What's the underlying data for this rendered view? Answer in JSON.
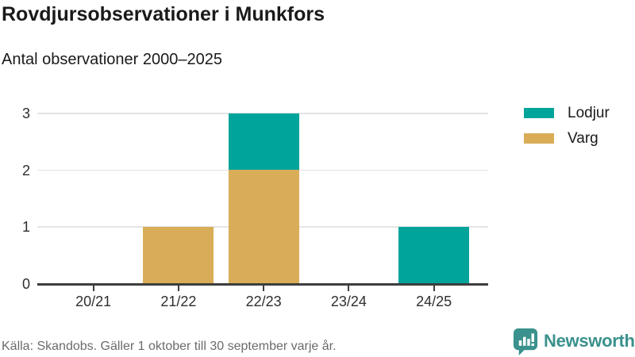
{
  "header": {
    "title": "Rovdjursobservationer i Munkfors",
    "subtitle": "Antal observationer 2000–2025"
  },
  "chart_data": {
    "type": "bar",
    "stacked": true,
    "title": "Rovdjursobservationer i Munkfors",
    "subtitle": "Antal observationer 2000–2025",
    "categories": [
      "20/21",
      "21/22",
      "22/23",
      "23/24",
      "24/25"
    ],
    "series": [
      {
        "name": "Lodjur",
        "color": "#00a49a",
        "values": [
          0,
          0,
          1,
          0,
          1
        ]
      },
      {
        "name": "Varg",
        "color": "#d9ad58",
        "values": [
          0,
          1,
          2,
          0,
          0
        ]
      }
    ],
    "stack_order_bottom_to_top": [
      "Varg",
      "Lodjur"
    ],
    "xlabel": "",
    "ylabel": "",
    "ylim": [
      0,
      3
    ],
    "yticks": [
      0,
      1,
      2,
      3
    ],
    "grid": true,
    "legend_position": "right"
  },
  "footer": {
    "source": "Källa: Skandobs. Gäller 1 oktober till 30 september varje år.",
    "brand": "Newsworthy"
  },
  "colors": {
    "lodjur": "#00a49a",
    "varg": "#d9ad58",
    "brand": "#3a918d",
    "axis": "#3d3d3d",
    "grid": "#e4e4e4",
    "text": "#1a1a1a",
    "axis_text": "#2f2f2f",
    "muted": "#6b6b6b"
  }
}
